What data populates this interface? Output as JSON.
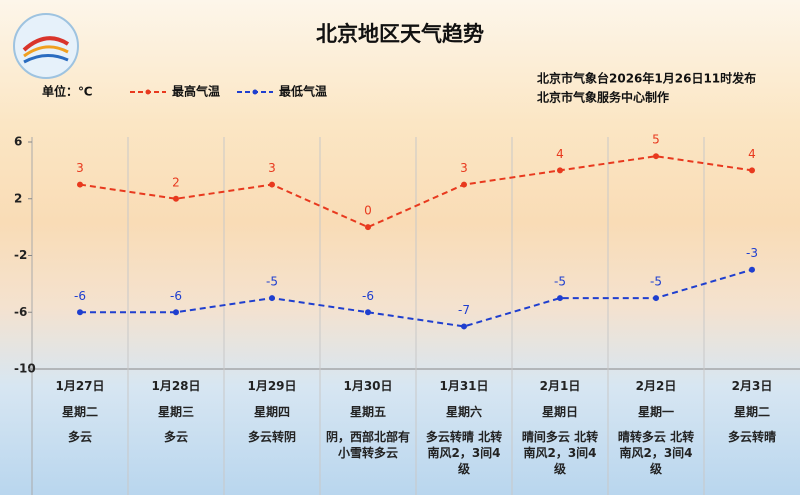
{
  "chart_data": {
    "type": "line",
    "title": "北京地区天气趋势",
    "unit": "单位：℃",
    "notes": [
      "北京市气象台2026年1月26日11时发布",
      "北京市气象服务中心制作"
    ],
    "categories": [
      "1月27日",
      "1月28日",
      "1月29日",
      "1月30日",
      "1月31日",
      "2月1日",
      "2月2日",
      "2月3日"
    ],
    "weekdays": [
      "星期二",
      "星期三",
      "星期四",
      "星期五",
      "星期六",
      "星期日",
      "星期一",
      "星期二"
    ],
    "weather": [
      "多云",
      "多云",
      "多云转阴",
      "阴，西部北部有小雪转多云",
      "多云转晴 北转南风2，3间4级",
      "晴间多云 北转南风2，3间4级",
      "晴转多云 北转南风2，3间4级",
      "多云转晴"
    ],
    "series": [
      {
        "name": "最高气温",
        "color": "#e8391e",
        "values": [
          3,
          2,
          3,
          0,
          3,
          4,
          5,
          4
        ]
      },
      {
        "name": "最低气温",
        "color": "#1f3fcf",
        "values": [
          -6,
          -6,
          -5,
          -6,
          -7,
          -5,
          -5,
          -3
        ]
      }
    ],
    "ylim": [
      -10,
      6
    ],
    "yticks": [
      6,
      2,
      -2,
      -6,
      -10
    ]
  }
}
